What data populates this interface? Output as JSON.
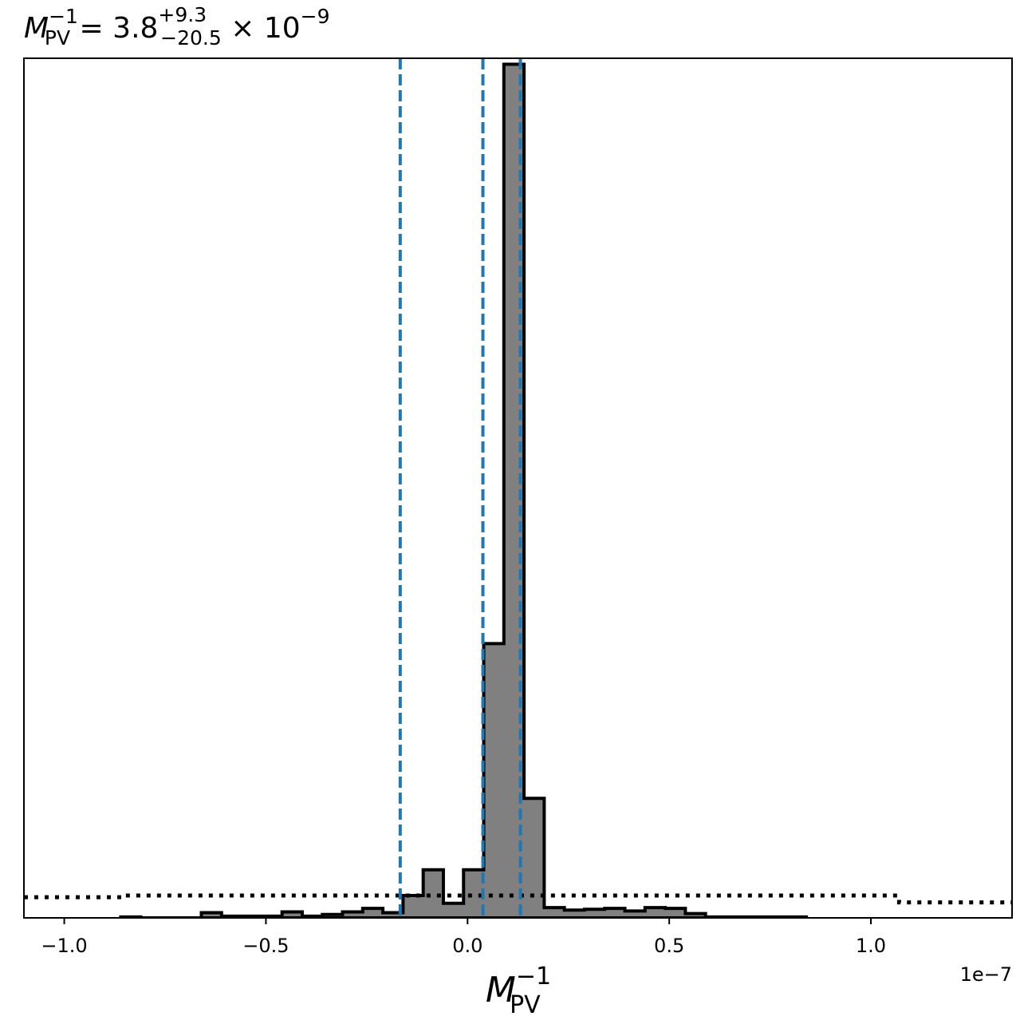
{
  "chart_data": {
    "type": "histogram",
    "title": {
      "symbol": "M",
      "subscript": "PV",
      "superscript": "−1",
      "equals": " = 3.8",
      "upper": "+9.3",
      "lower": "−20.5",
      "times": " × 10",
      "exponent": "−9"
    },
    "xlabel": {
      "symbol": "M",
      "subscript": "PV",
      "superscript": "−1"
    },
    "ylabel": "",
    "x_offset_label": "1e−7",
    "xlim": [
      -1.1e-07,
      1.35e-07
    ],
    "ylim": [
      0,
      1.0
    ],
    "x_ticks": [
      -1e-07,
      -5e-08,
      0.0,
      5e-08,
      1e-07
    ],
    "x_tick_labels": [
      "−1.0",
      "−0.5",
      "0.0",
      "0.5",
      "1.0"
    ],
    "y_ticks_shown": false,
    "grid": false,
    "histogram": {
      "fill_color": "#808080",
      "edge_color": "#000000",
      "bin_edges": [
        -8.6e-08,
        -8.1e-08,
        -7.6e-08,
        -7.1e-08,
        -6.6e-08,
        -6.1e-08,
        -5.6e-08,
        -5.1e-08,
        -4.6e-08,
        -4.1e-08,
        -3.6e-08,
        -3.1e-08,
        -2.6e-08,
        -2.1e-08,
        -1.6e-08,
        -1.1e-08,
        -6e-09,
        -1e-09,
        4e-09,
        9e-09,
        1.4e-08,
        1.9e-08,
        2.4e-08,
        2.9e-08,
        3.4e-08,
        3.9e-08,
        4.4e-08,
        4.9e-08,
        5.4e-08,
        5.9e-08,
        6.4e-08,
        6.9e-08,
        7.4e-08,
        7.9e-08,
        8.4e-08
      ],
      "counts": [
        0.001,
        0.0,
        0.0,
        0.0,
        0.006,
        0.002,
        0.002,
        0.002,
        0.007,
        0.002,
        0.004,
        0.007,
        0.011,
        0.006,
        0.026,
        0.056,
        0.017,
        0.056,
        0.319,
        0.993,
        0.139,
        0.012,
        0.009,
        0.01,
        0.011,
        0.008,
        0.012,
        0.011,
        0.005,
        0.001,
        0.001,
        0.001,
        0.001,
        0.001
      ]
    },
    "prior": {
      "style": "dotted",
      "color": "#000000",
      "x": [
        -1.1e-07,
        -8.5e-08,
        -8.5e-08,
        1.07e-07,
        1.07e-07,
        1.35e-07
      ],
      "y": [
        0.024,
        0.024,
        0.026,
        0.026,
        0.018,
        0.018
      ]
    },
    "quantile_lines": {
      "color": "#1f77b4",
      "style": "dashed",
      "values": [
        -1.67e-08,
        3.8e-09,
        1.31e-08
      ]
    }
  }
}
